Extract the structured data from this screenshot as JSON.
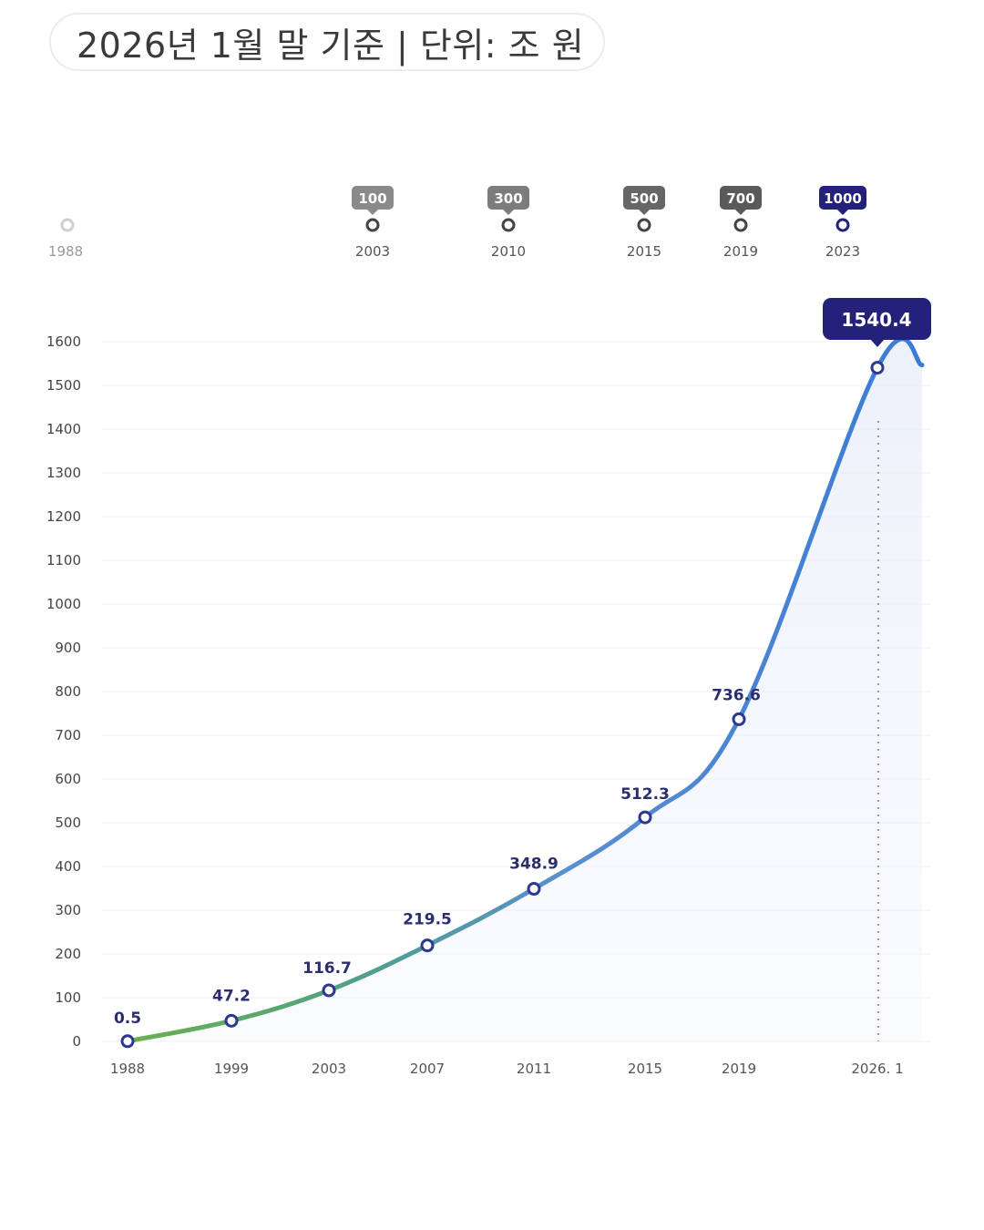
{
  "header": {
    "note": "2026년 1월 말 기준 | 단위: 조 원"
  },
  "colors": {
    "line_start": "#6ab04c",
    "line_end": "#3a7bd5",
    "marker_fill": "#ffffff",
    "marker_stroke": "#2b3a8f",
    "callout_bg": "#24217a",
    "milestone_gray": "#6e6e6e",
    "milestone_last": "#24217a",
    "grid": "#eef0f4",
    "guide": "#b48fb0"
  },
  "timeline": {
    "start_year": "1988",
    "milestones": [
      {
        "year": "2003",
        "value": "100"
      },
      {
        "year": "2010",
        "value": "300"
      },
      {
        "year": "2015",
        "value": "500"
      },
      {
        "year": "2019",
        "value": "700"
      },
      {
        "year": "2023",
        "value": "1000"
      }
    ]
  },
  "chart_data": {
    "type": "line",
    "title": "",
    "xlabel": "",
    "ylabel": "",
    "ylim": [
      0,
      1600
    ],
    "yticks": [
      0,
      100,
      200,
      300,
      400,
      500,
      600,
      700,
      800,
      900,
      1000,
      1100,
      1200,
      1300,
      1400,
      1500,
      1600
    ],
    "categories": [
      "1988",
      "1999",
      "2003",
      "2007",
      "2011",
      "2015",
      "2019",
      "2026. 1"
    ],
    "values": [
      0.5,
      47.2,
      116.7,
      219.5,
      348.9,
      512.3,
      736.6,
      1540.4
    ],
    "labels": [
      "0.5",
      "47.2",
      "116.7",
      "219.5",
      "348.9",
      "512.3",
      "736.6",
      "1540.4"
    ],
    "highlight": "1540.4",
    "grid": true,
    "legend": "none"
  }
}
